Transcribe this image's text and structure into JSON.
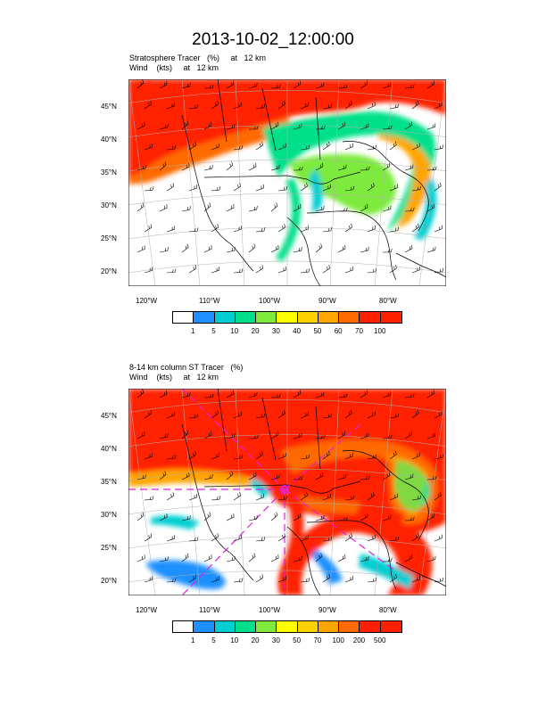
{
  "title": "2013-10-02_12:00:00",
  "panels": [
    {
      "subtitle_line1": "Stratosphere Tracer   (%)     at   12 km",
      "subtitle_line2": "Wind    (kts)     at   12 km",
      "lat_labels": [
        "45°N",
        "40°N",
        "35°N",
        "30°N",
        "25°N",
        "20°N"
      ],
      "lon_labels": [
        "120°W",
        "110°W",
        "100°W",
        "90°W",
        "80°W"
      ],
      "colorbar_labels": [
        "1",
        "5",
        "10",
        "20",
        "30",
        "40",
        "50",
        "60",
        "70",
        "100"
      ],
      "colorbar_colors": [
        "#ffffff",
        "#1e90ff",
        "#00ced1",
        "#00e08a",
        "#7dea3c",
        "#ffff00",
        "#ffd000",
        "#ffa500",
        "#ff6a00",
        "#ff2000"
      ]
    },
    {
      "subtitle_line1": "8-14 km column ST Tracer   (%)",
      "subtitle_line2": "Wind    (kts)     at   12 km",
      "lat_labels": [
        "45°N",
        "40°N",
        "35°N",
        "30°N",
        "25°N",
        "20°N"
      ],
      "lon_labels": [
        "120°W",
        "110°W",
        "100°W",
        "90°W",
        "80°W"
      ],
      "colorbar_labels": [
        "1",
        "5",
        "10",
        "20",
        "30",
        "50",
        "70",
        "100",
        "200",
        "500"
      ],
      "colorbar_colors": [
        "#ffffff",
        "#1e90ff",
        "#00ced1",
        "#00e08a",
        "#7dea3c",
        "#ffff00",
        "#ffd000",
        "#ffa500",
        "#ff6a00",
        "#ff2000"
      ]
    }
  ]
}
